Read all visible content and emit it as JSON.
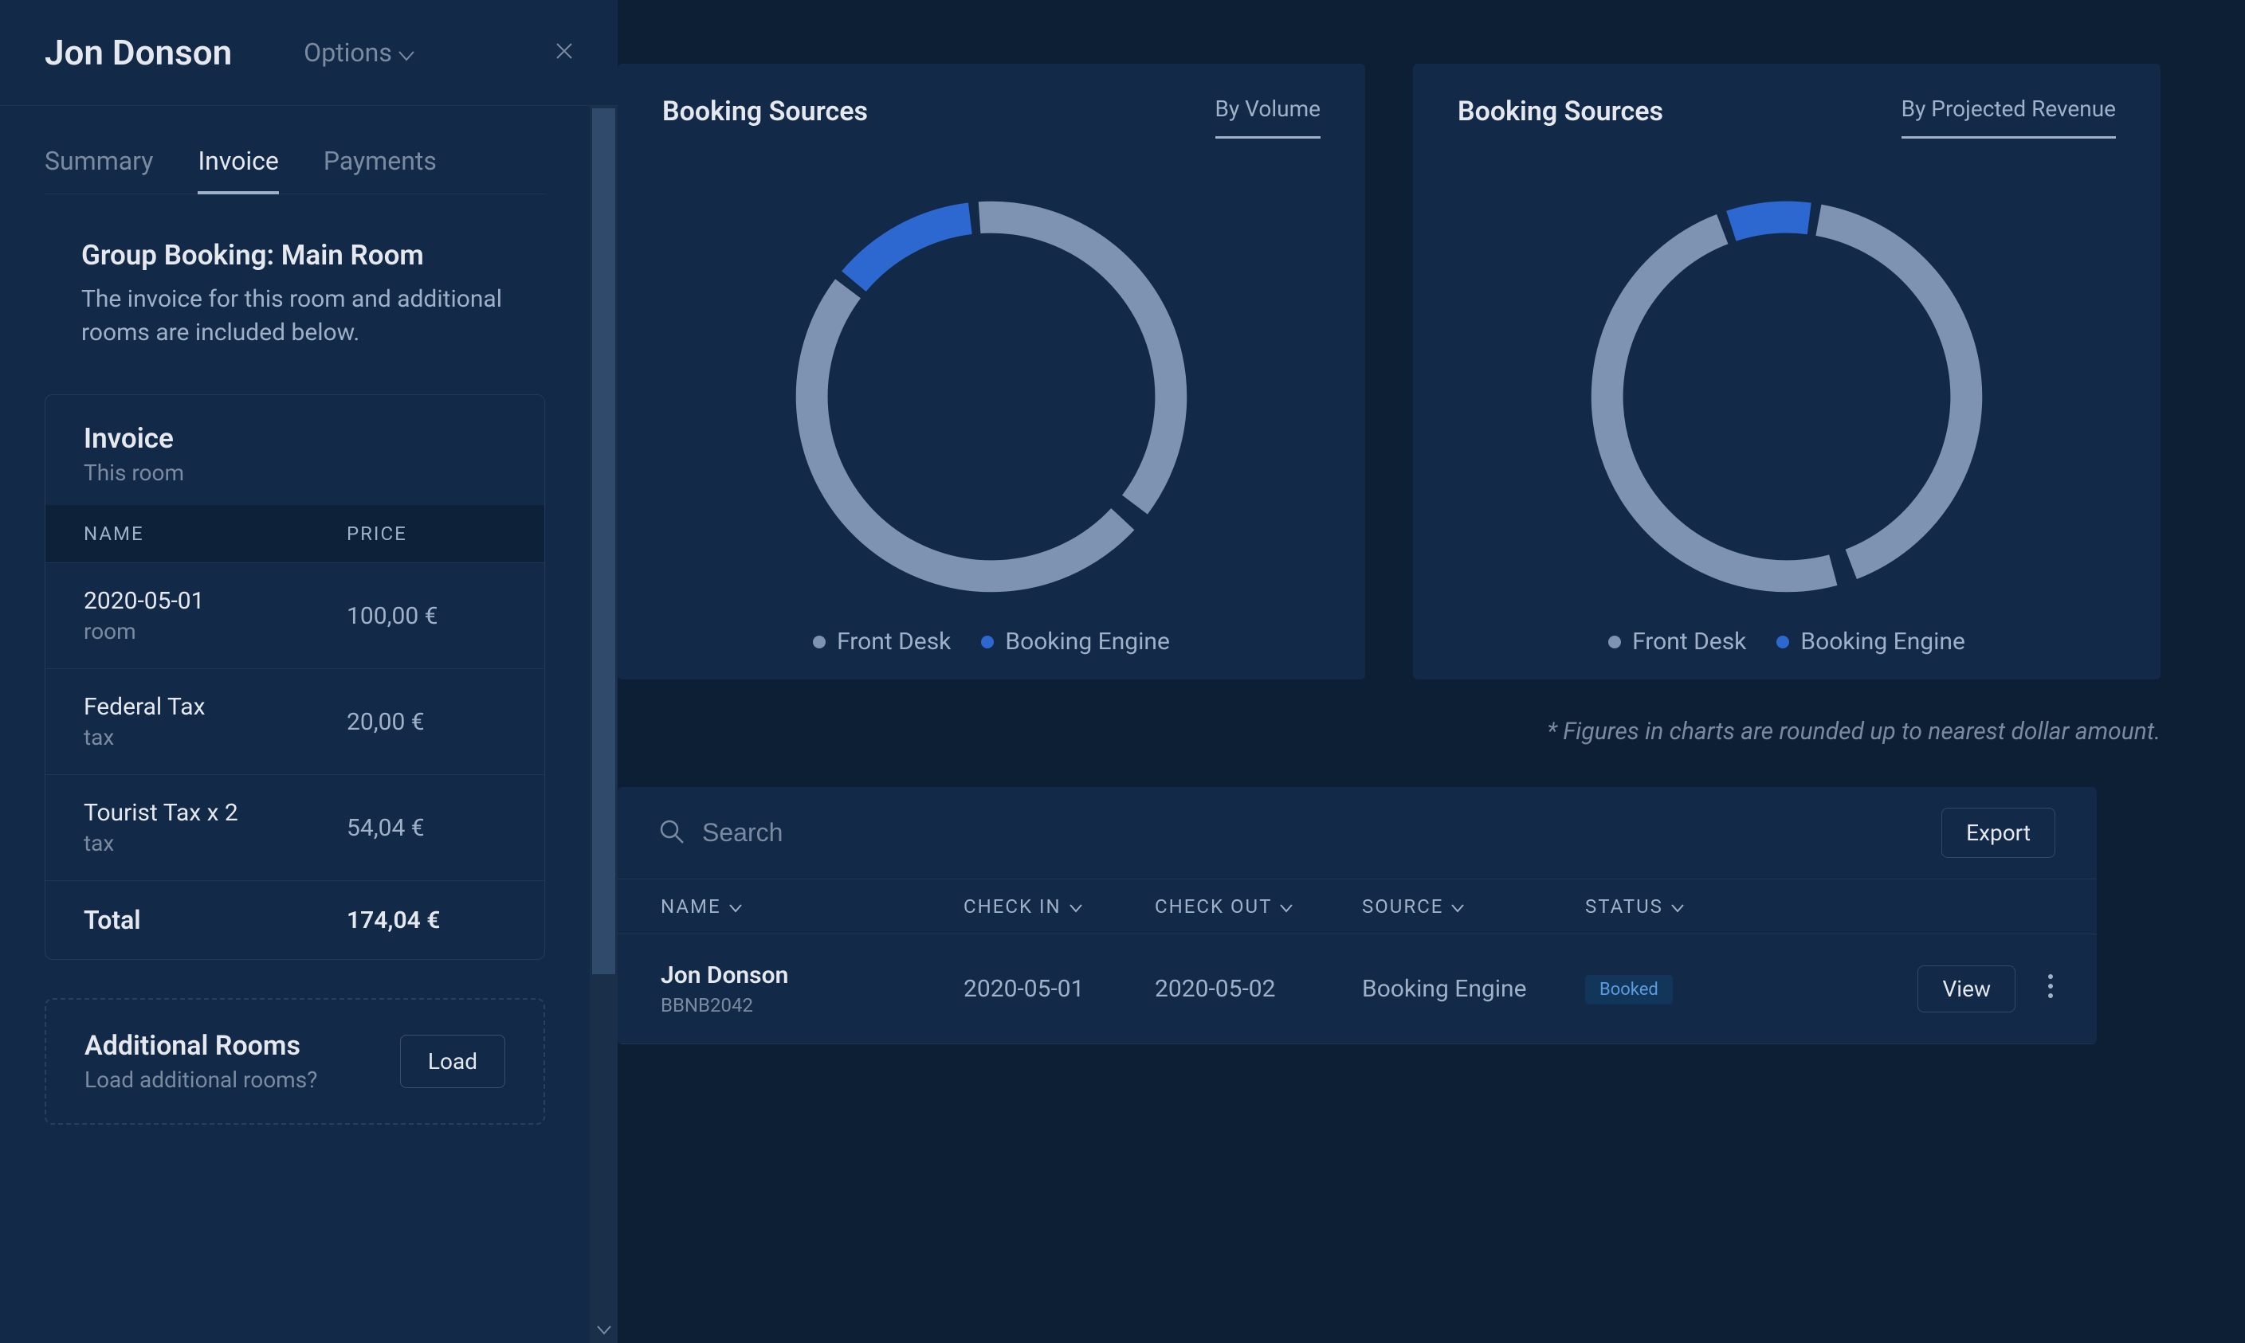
{
  "colors": {
    "bg": "#0d1f35",
    "panel": "#122a47",
    "text": "#e5e9ef",
    "muted": "#7a8aa0",
    "subtle": "#9fb1c8",
    "ring_base": "#7e93b1",
    "ring_accent": "#2d68d0",
    "badge_bg": "#11365a",
    "badge_text": "#5d9be0"
  },
  "panel": {
    "title": "Jon Donson",
    "options_label": "Options",
    "tabs": {
      "summary": "Summary",
      "invoice": "Invoice",
      "payments": "Payments"
    },
    "group": {
      "heading": "Group Booking: Main Room",
      "desc": "The invoice for this room and additional rooms are included below."
    },
    "invoice": {
      "card_title": "Invoice",
      "card_sub": "This room",
      "col_name": "Name",
      "col_price": "Price",
      "rows": [
        {
          "name": "2020-05-01",
          "sub": "room",
          "price": "100,00 €"
        },
        {
          "name": "Federal Tax",
          "sub": "tax",
          "price": "20,00 €"
        },
        {
          "name": "Tourist Tax x 2",
          "sub": "tax",
          "price": "54,04 €"
        }
      ],
      "total_label": "Total",
      "total_price": "174,04 €"
    },
    "additional": {
      "title": "Additional Rooms",
      "sub": "Load additional rooms?",
      "button": "Load"
    }
  },
  "chart1": {
    "title": "Booking Sources",
    "toggle": "By Volume",
    "type": "donut",
    "ring_color": "#7e93b1",
    "accent_color": "#2d68d0",
    "stroke_width": 23,
    "gap_deg": 3,
    "segments": [
      {
        "label": "Front Desk",
        "pct": 88,
        "color": "#7e93b1"
      },
      {
        "label": "Booking Engine",
        "pct": 12,
        "color": "#2d68d0"
      }
    ],
    "accent_start_deg": -50,
    "legend": [
      {
        "label": "Front Desk",
        "color": "#7e93b1"
      },
      {
        "label": "Booking Engine",
        "color": "#2d68d0"
      }
    ]
  },
  "chart2": {
    "title": "Booking Sources",
    "toggle": "By Projected Revenue",
    "type": "donut",
    "ring_color": "#7e93b1",
    "accent_color": "#2d68d0",
    "stroke_width": 23,
    "gap_deg": 3,
    "segments": [
      {
        "label": "Front Desk",
        "pct": 93,
        "color": "#7e93b1"
      },
      {
        "label": "Booking Engine",
        "pct": 7,
        "color": "#2d68d0"
      }
    ],
    "accent_start_deg": -18,
    "legend": [
      {
        "label": "Front Desk",
        "color": "#7e93b1"
      },
      {
        "label": "Booking Engine",
        "color": "#2d68d0"
      }
    ]
  },
  "note": "* Figures in charts are rounded up to nearest dollar amount.",
  "table": {
    "search_placeholder": "Search",
    "export_label": "Export",
    "cols": {
      "name": "Name",
      "checkin": "Check In",
      "checkout": "Check Out",
      "source": "Source",
      "status": "Status"
    },
    "rows": [
      {
        "name": "Jon Donson",
        "ref": "BBNB2042",
        "checkin": "2020-05-01",
        "checkout": "2020-05-02",
        "source": "Booking Engine",
        "status": "Booked",
        "view": "View"
      }
    ]
  }
}
